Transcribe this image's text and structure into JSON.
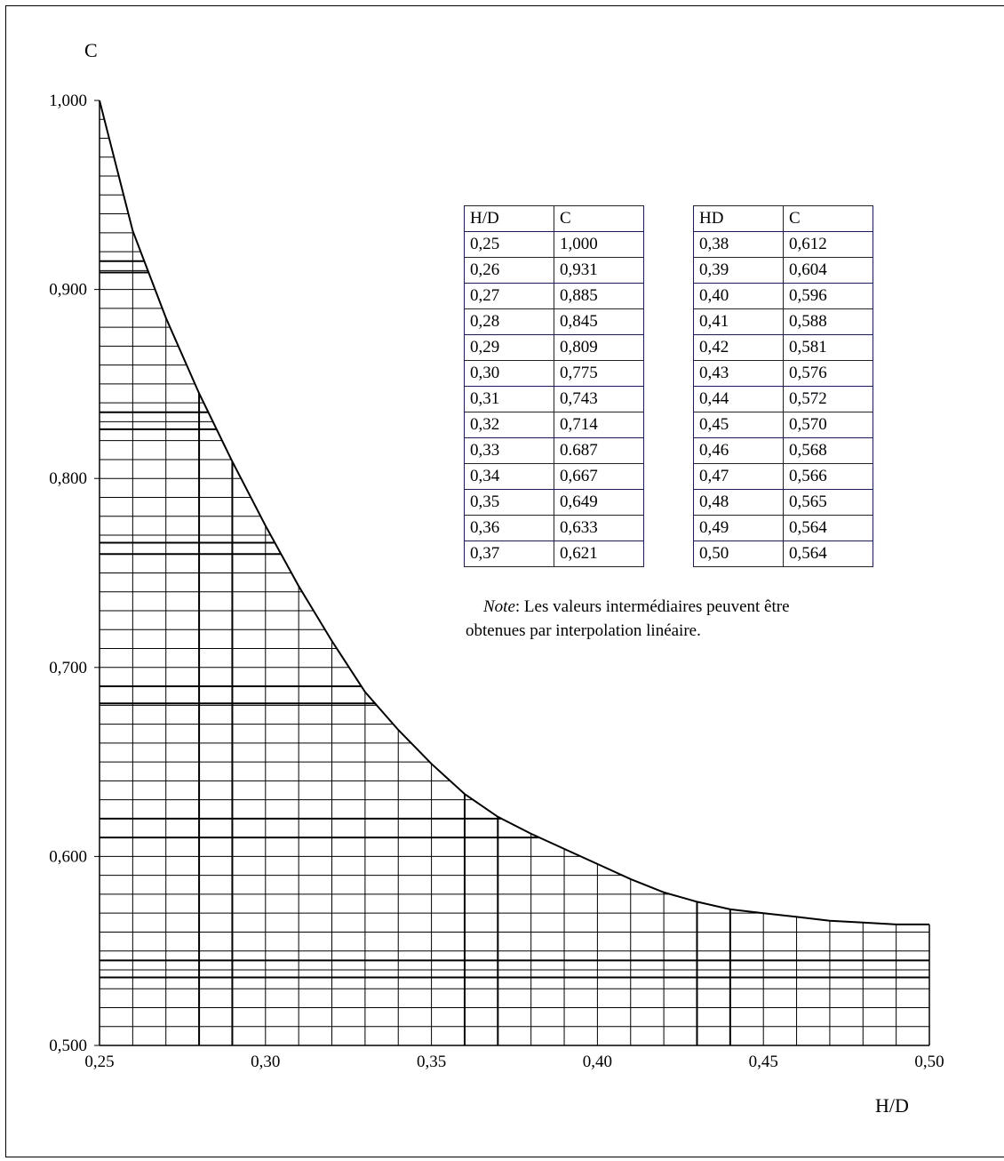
{
  "chart_data": {
    "type": "line",
    "title": "",
    "xlabel": "H/D",
    "ylabel": "C",
    "xlim": [
      0.25,
      0.5
    ],
    "ylim": [
      0.5,
      1.0
    ],
    "grid": true,
    "x_ticks": [
      "0,25",
      "0,30",
      "0,35",
      "0,40",
      "0,45",
      "0,50"
    ],
    "y_ticks": [
      "0,500",
      "0,600",
      "0,700",
      "0,800",
      "0,900",
      "1,000"
    ],
    "x": [
      0.25,
      0.26,
      0.27,
      0.28,
      0.29,
      0.3,
      0.31,
      0.32,
      0.33,
      0.34,
      0.35,
      0.36,
      0.37,
      0.38,
      0.39,
      0.4,
      0.41,
      0.42,
      0.43,
      0.44,
      0.45,
      0.46,
      0.47,
      0.48,
      0.49,
      0.5
    ],
    "series": [
      {
        "values": [
          1.0,
          0.931,
          0.885,
          0.845,
          0.809,
          0.775,
          0.743,
          0.714,
          0.687,
          0.667,
          0.649,
          0.633,
          0.621,
          0.612,
          0.604,
          0.596,
          0.588,
          0.581,
          0.576,
          0.572,
          0.57,
          0.568,
          0.566,
          0.565,
          0.564,
          0.564
        ]
      }
    ]
  },
  "table_left": {
    "header": [
      "H/D",
      "C"
    ],
    "rows": [
      [
        "0,25",
        "1,000"
      ],
      [
        "0,26",
        "0,931"
      ],
      [
        "0,27",
        "0,885"
      ],
      [
        "0,28",
        "0,845"
      ],
      [
        "0,29",
        "0,809"
      ],
      [
        "0,30",
        "0,775"
      ],
      [
        "0,31",
        "0,743"
      ],
      [
        "0,32",
        "0,714"
      ],
      [
        "0,33",
        "0.687"
      ],
      [
        "0,34",
        "0,667"
      ],
      [
        "0,35",
        "0,649"
      ],
      [
        "0,36",
        "0,633"
      ],
      [
        "0,37",
        "0,621"
      ]
    ]
  },
  "table_right": {
    "header": [
      "HD",
      "C"
    ],
    "rows": [
      [
        "0,38",
        "0,612"
      ],
      [
        "0,39",
        "0,604"
      ],
      [
        "0,40",
        "0,596"
      ],
      [
        "0,41",
        "0,588"
      ],
      [
        "0,42",
        "0,581"
      ],
      [
        "0,43",
        "0,576"
      ],
      [
        "0,44",
        "0,572"
      ],
      [
        "0,45",
        "0,570"
      ],
      [
        "0,46",
        "0,568"
      ],
      [
        "0,47",
        "0,566"
      ],
      [
        "0,48",
        "0,565"
      ],
      [
        "0,49",
        "0,564"
      ],
      [
        "0,50",
        "0,564"
      ]
    ]
  },
  "note": {
    "label": "Note",
    "text_line1": ": Les valeurs intermédiaires peuvent être",
    "text_line2": "obtenues par interpolation linéaire."
  }
}
